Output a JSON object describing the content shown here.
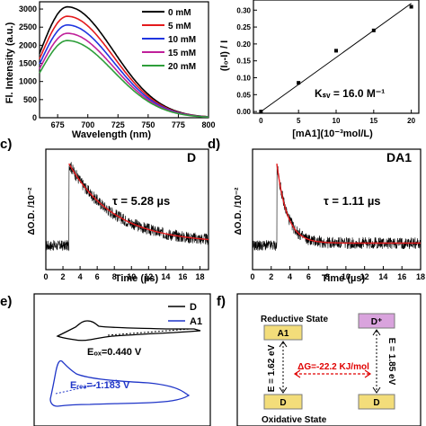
{
  "colors": {
    "axis": "#000000",
    "fit_line": "#e41a1c",
    "cv_d": "#000000",
    "cv_a1": "#1f35c8",
    "box_fill": "#f3dd7a",
    "box_d_plus": "#d9a3dd",
    "box_border": "#7a7a7a",
    "arrow_red": "#e00000"
  },
  "panels": {
    "a": {
      "letter": "",
      "ylabel": "Fl. Intensity (a.u.)",
      "xlabel": "Wavelength (nm)",
      "legend": [
        "0 mM",
        "5 mM",
        "10 mM",
        "15 mM",
        "20 mM"
      ]
    },
    "b": {
      "letter": "",
      "ylabel": "(I₀-I) / I",
      "xlabel": "[mA1](10⁻³mol/L)",
      "annotation": "Kₛᵥ = 16.0 M⁻¹"
    },
    "c": {
      "letter": "c)",
      "title": "D",
      "ylabel": "ΔO.D. /10⁻²",
      "xlabel": "Time (µs)",
      "annotation": "τ = 5.28 µs"
    },
    "d": {
      "letter": "d)",
      "title": "DA1",
      "ylabel": "ΔO.D. /10⁻²",
      "xlabel": "Time (µs)",
      "annotation": "τ = 1.11 µs"
    },
    "e": {
      "letter": "e)",
      "legend": [
        "D",
        "A1"
      ],
      "eox": "Eₒₓ=0.440 V",
      "ered": "Eᵣₑₔ=-1.183 V"
    },
    "f": {
      "letter": "f)",
      "reductive": "Reductive State",
      "oxidative": "Oxidative State",
      "a1": "A1",
      "d_plus": "D⁺",
      "d1": "D",
      "d2": "D",
      "e_left": "E = 1.62 eV",
      "e_right": "E = 1.85 eV",
      "dg": "ΔG=-22.2 KJ/mol"
    }
  },
  "chart_data": [
    {
      "panel": "a",
      "type": "line",
      "xlim": [
        660,
        800
      ],
      "ylim": [
        0,
        3200
      ],
      "xticks": [
        675,
        700,
        725,
        750,
        775,
        800
      ],
      "yticks": [
        0,
        500,
        1000,
        1500,
        2000,
        2500,
        3000
      ],
      "peak_x": 683,
      "series": [
        {
          "name": "0 mM",
          "color": "#000000",
          "peak": 3060
        },
        {
          "name": "5 mM",
          "color": "#e41a1c",
          "peak": 2800
        },
        {
          "name": "10 mM",
          "color": "#1f35e0",
          "peak": 2560
        },
        {
          "name": "15 mM",
          "color": "#c0209a",
          "peak": 2330
        },
        {
          "name": "20 mM",
          "color": "#2e9e3a",
          "peak": 2130
        }
      ]
    },
    {
      "panel": "b",
      "type": "scatter",
      "xlim": [
        -1,
        21
      ],
      "ylim": [
        -0.005,
        0.33
      ],
      "xticks": [
        0,
        5,
        10,
        15,
        20
      ],
      "yticks": [
        0.0,
        0.05,
        0.1,
        0.15,
        0.2,
        0.25,
        0.3
      ],
      "x": [
        0,
        5,
        10,
        15,
        20
      ],
      "y": [
        0.0,
        0.085,
        0.18,
        0.24,
        0.31
      ],
      "fit": {
        "x": [
          0,
          20
        ],
        "y": [
          0.0,
          0.32
        ]
      }
    },
    {
      "panel": "c",
      "type": "line",
      "xlim": [
        0,
        19
      ],
      "ylim": [
        -0.4,
        1.6
      ],
      "xticks": [
        0,
        2,
        4,
        6,
        8,
        10,
        12,
        14,
        16,
        18
      ],
      "t0": 2.7,
      "peak": 1.32,
      "tau": 5.28,
      "noise": 0.09
    },
    {
      "panel": "d",
      "type": "line",
      "xlim": [
        0,
        18
      ],
      "ylim": [
        -0.4,
        1.6
      ],
      "xticks": [
        0,
        2,
        4,
        6,
        8,
        10,
        12,
        14,
        16,
        18
      ],
      "t0": 2.6,
      "peak": 1.32,
      "tau": 1.11,
      "noise": 0.09
    }
  ]
}
